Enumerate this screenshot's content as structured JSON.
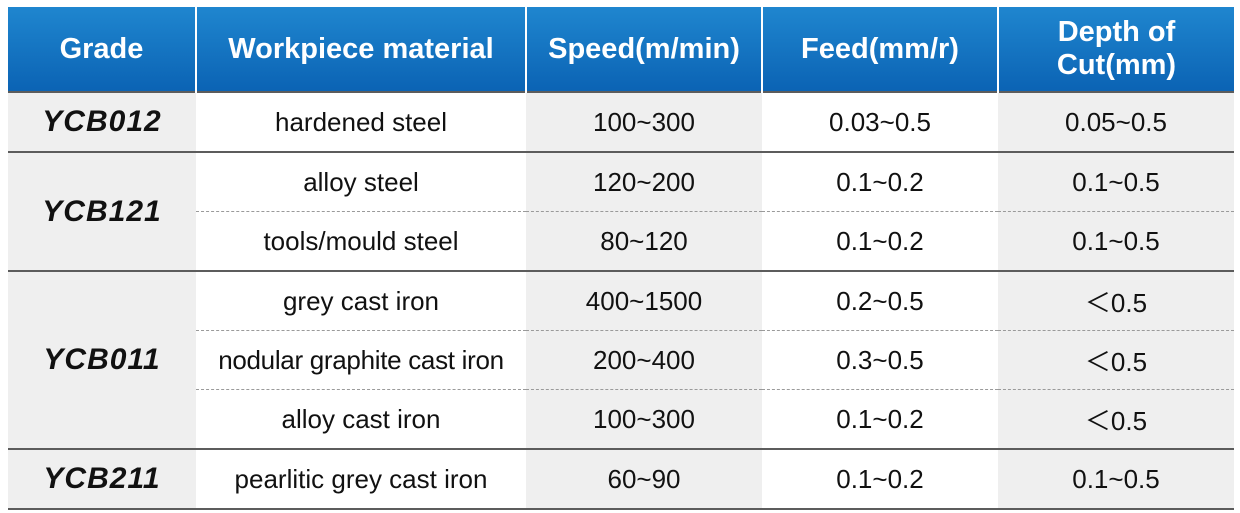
{
  "headers": [
    "Grade",
    "Workpiece material",
    "Speed(m/min)",
    "Feed(mm/r)",
    "Depth of Cut(mm)"
  ],
  "groups": [
    {
      "grade": "YCB012",
      "rows": [
        {
          "material": "hardened steel",
          "speed": "100~300",
          "feed": "0.03~0.5",
          "depth": "0.05~0.5"
        }
      ]
    },
    {
      "grade": "YCB121",
      "rows": [
        {
          "material": "alloy steel",
          "speed": "120~200",
          "feed": "0.1~0.2",
          "depth": "0.1~0.5"
        },
        {
          "material": "tools/mould steel",
          "speed": "80~120",
          "feed": "0.1~0.2",
          "depth": "0.1~0.5"
        }
      ]
    },
    {
      "grade": "YCB011",
      "rows": [
        {
          "material": "grey cast iron",
          "speed": "400~1500",
          "feed": "0.2~0.5",
          "depth": "＜0.5"
        },
        {
          "material": "nodular graphite cast iron",
          "speed": "200~400",
          "feed": "0.3~0.5",
          "depth": "＜0.5"
        },
        {
          "material": "alloy cast iron",
          "speed": "100~300",
          "feed": "0.1~0.2",
          "depth": "＜0.5"
        }
      ]
    },
    {
      "grade": "YCB211",
      "rows": [
        {
          "material": "pearlitic grey cast iron",
          "speed": "60~90",
          "feed": "0.1~0.2",
          "depth": "0.1~0.5"
        }
      ]
    }
  ]
}
